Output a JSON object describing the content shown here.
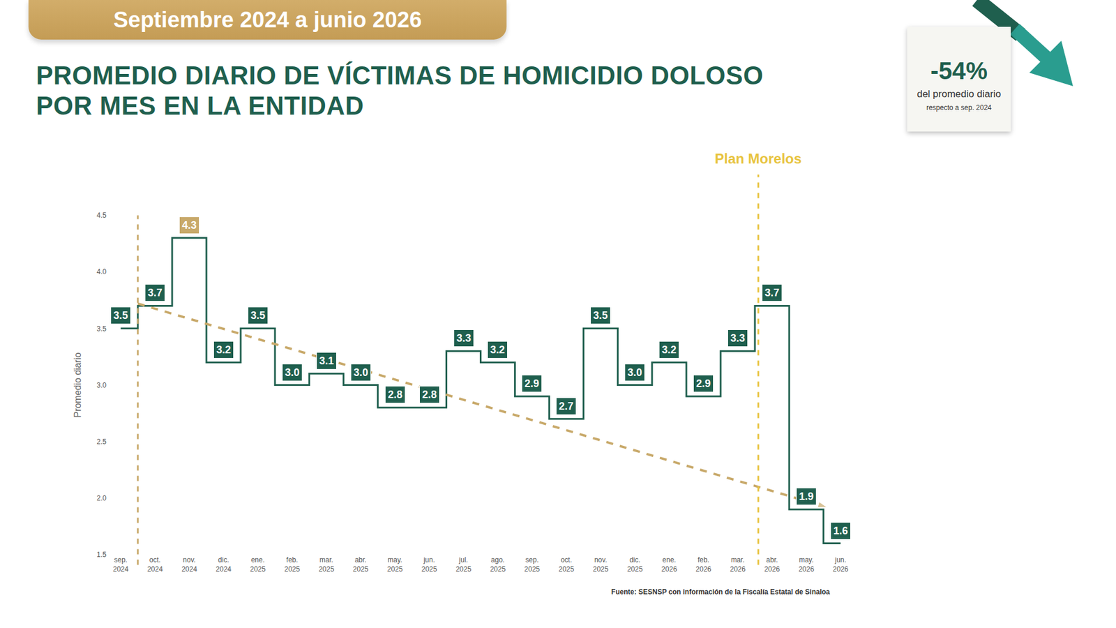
{
  "banner": "Septiembre 2024 a junio 2026",
  "badge": {
    "change": "-54%",
    "text": "del promedio diario",
    "subtext": "respecto a sep. 2024"
  },
  "source": "Fuente: SESNSP con información de la Fiscalía Estatal de Sinaloa",
  "chart_data": {
    "type": "line",
    "title": "PROMEDIO DIARIO DE VÍCTIMAS DE HOMICIDIO DOLOSO POR MES EN LA ENTIDAD",
    "y_label": "Promedio diario",
    "line_style": "step",
    "categories": [
      "sep. 2024",
      "oct. 2024",
      "nov. 2024",
      "dic. 2024",
      "ene. 2025",
      "feb. 2025",
      "mar. 2025",
      "abr. 2025",
      "may. 2025",
      "jun. 2025",
      "jul. 2025",
      "ago. 2025",
      "sep. 2025",
      "oct. 2025",
      "nov. 2025",
      "dic. 2025",
      "ene. 2026",
      "feb. 2026",
      "mar. 2026",
      "abr. 2026",
      "may. 2026",
      "jun. 2026"
    ],
    "values": [
      3.5,
      3.7,
      4.3,
      3.2,
      3.5,
      3.0,
      3.1,
      3.0,
      2.8,
      2.8,
      3.3,
      3.2,
      2.9,
      2.7,
      3.5,
      3.0,
      3.2,
      2.9,
      3.3,
      3.7,
      1.9,
      1.6
    ],
    "value_labels": [
      "3.5",
      "3.7",
      "4.3",
      "3.2",
      "3.5",
      "3.0",
      "3.1",
      "3.0",
      "2.8",
      "2.8",
      "3.3",
      "3.2",
      "2.9",
      "2.7",
      "3.5",
      "3.0",
      "3.2",
      "2.9",
      "3.3",
      "3.7",
      "1.9",
      "1.6"
    ],
    "data_labels": true,
    "color": "#1f5f4e",
    "colors": [
      "#1f5f4e",
      "#1f5f4e",
      "#c8a96a",
      "#1f5f4e",
      "#1f5f4e",
      "#1f5f4e",
      "#1f5f4e",
      "#1f5f4e",
      "#1f5f4e",
      "#1f5f4e",
      "#1f5f4e",
      "#1f5f4e",
      "#1f5f4e",
      "#1f5f4e",
      "#1f5f4e",
      "#1f5f4e",
      "#1f5f4e",
      "#1f5f4e",
      "#1f5f4e",
      "#1f5f4e",
      "#1f5f4e",
      "#1f5f4e"
    ],
    "ylim": [
      1.5,
      4.5
    ],
    "yticks": [
      1.5,
      {
        "value": 2,
        "label": "2.0"
      },
      2.5,
      {
        "value": 3,
        "label": "3.0"
      },
      3.5,
      {
        "value": 4,
        "label": "4.0"
      },
      4.5
    ],
    "grid": false,
    "tick_labels": true,
    "trend_line": {
      "x": [
        0.5,
        20.6
      ],
      "values": [
        3.72,
        1.92
      ],
      "color": "#c8a96a",
      "line_style": "dashed",
      "marker": "arrow"
    },
    "reference_lines": [
      {
        "x": 0.5,
        "color": "#c8a96a",
        "line_style": "dashed"
      },
      {
        "x": 18.6,
        "color": "#e8c440",
        "line_style": "dashed",
        "label": "Plan Morelos"
      }
    ]
  }
}
